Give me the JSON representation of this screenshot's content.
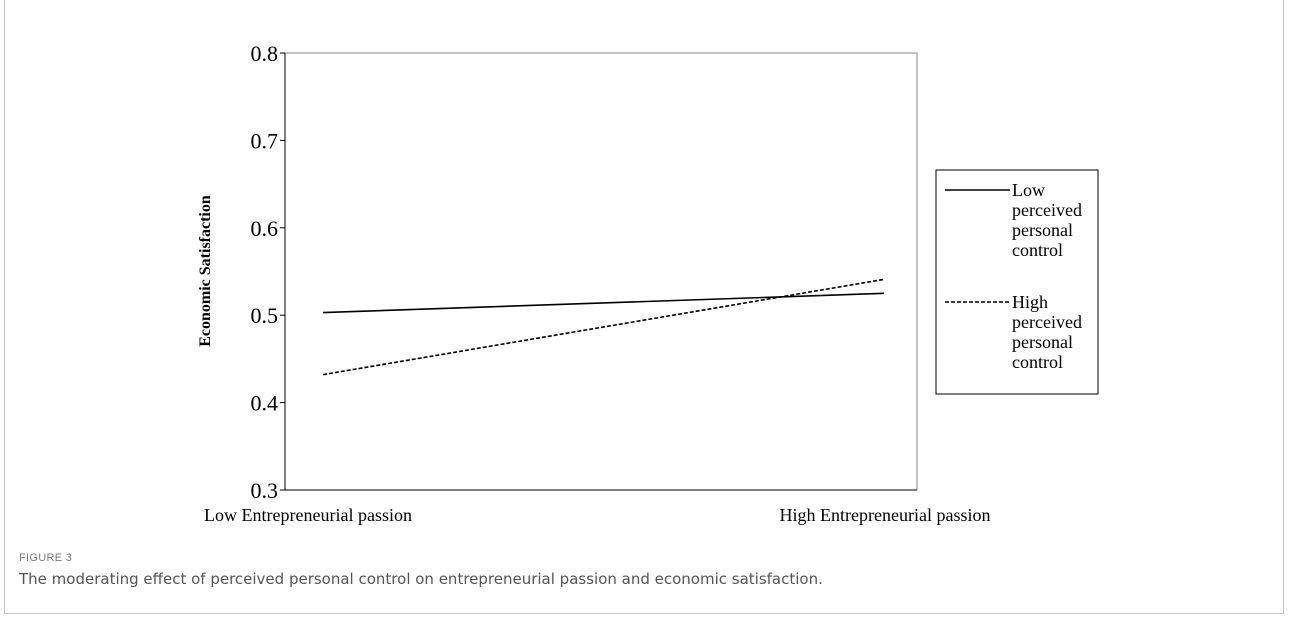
{
  "chart_data": {
    "type": "line",
    "categories": [
      "Low Entrepreneurial passion",
      "High Entrepreneurial passion"
    ],
    "series": [
      {
        "name": "Low perceived personal control",
        "values": [
          0.503,
          0.525
        ],
        "style": "solid"
      },
      {
        "name": "High perceived personal control",
        "values": [
          0.432,
          0.541
        ],
        "style": "dashed"
      }
    ],
    "ylabel": "Economic Satisfaction",
    "xlabel": "",
    "ylim": [
      0.3,
      0.8
    ],
    "yticks": [
      "0.8",
      "0.7",
      "0.6",
      "0.5",
      "0.4",
      "0.3"
    ],
    "grid": false,
    "legend_position": "right"
  },
  "figure": {
    "label": "FIGURE 3",
    "caption": "The moderating effect of perceived personal control on entrepreneurial passion and economic satisfaction."
  },
  "colors": {
    "line": "#000000",
    "caption": "#555555",
    "label": "#7a7a7a"
  }
}
